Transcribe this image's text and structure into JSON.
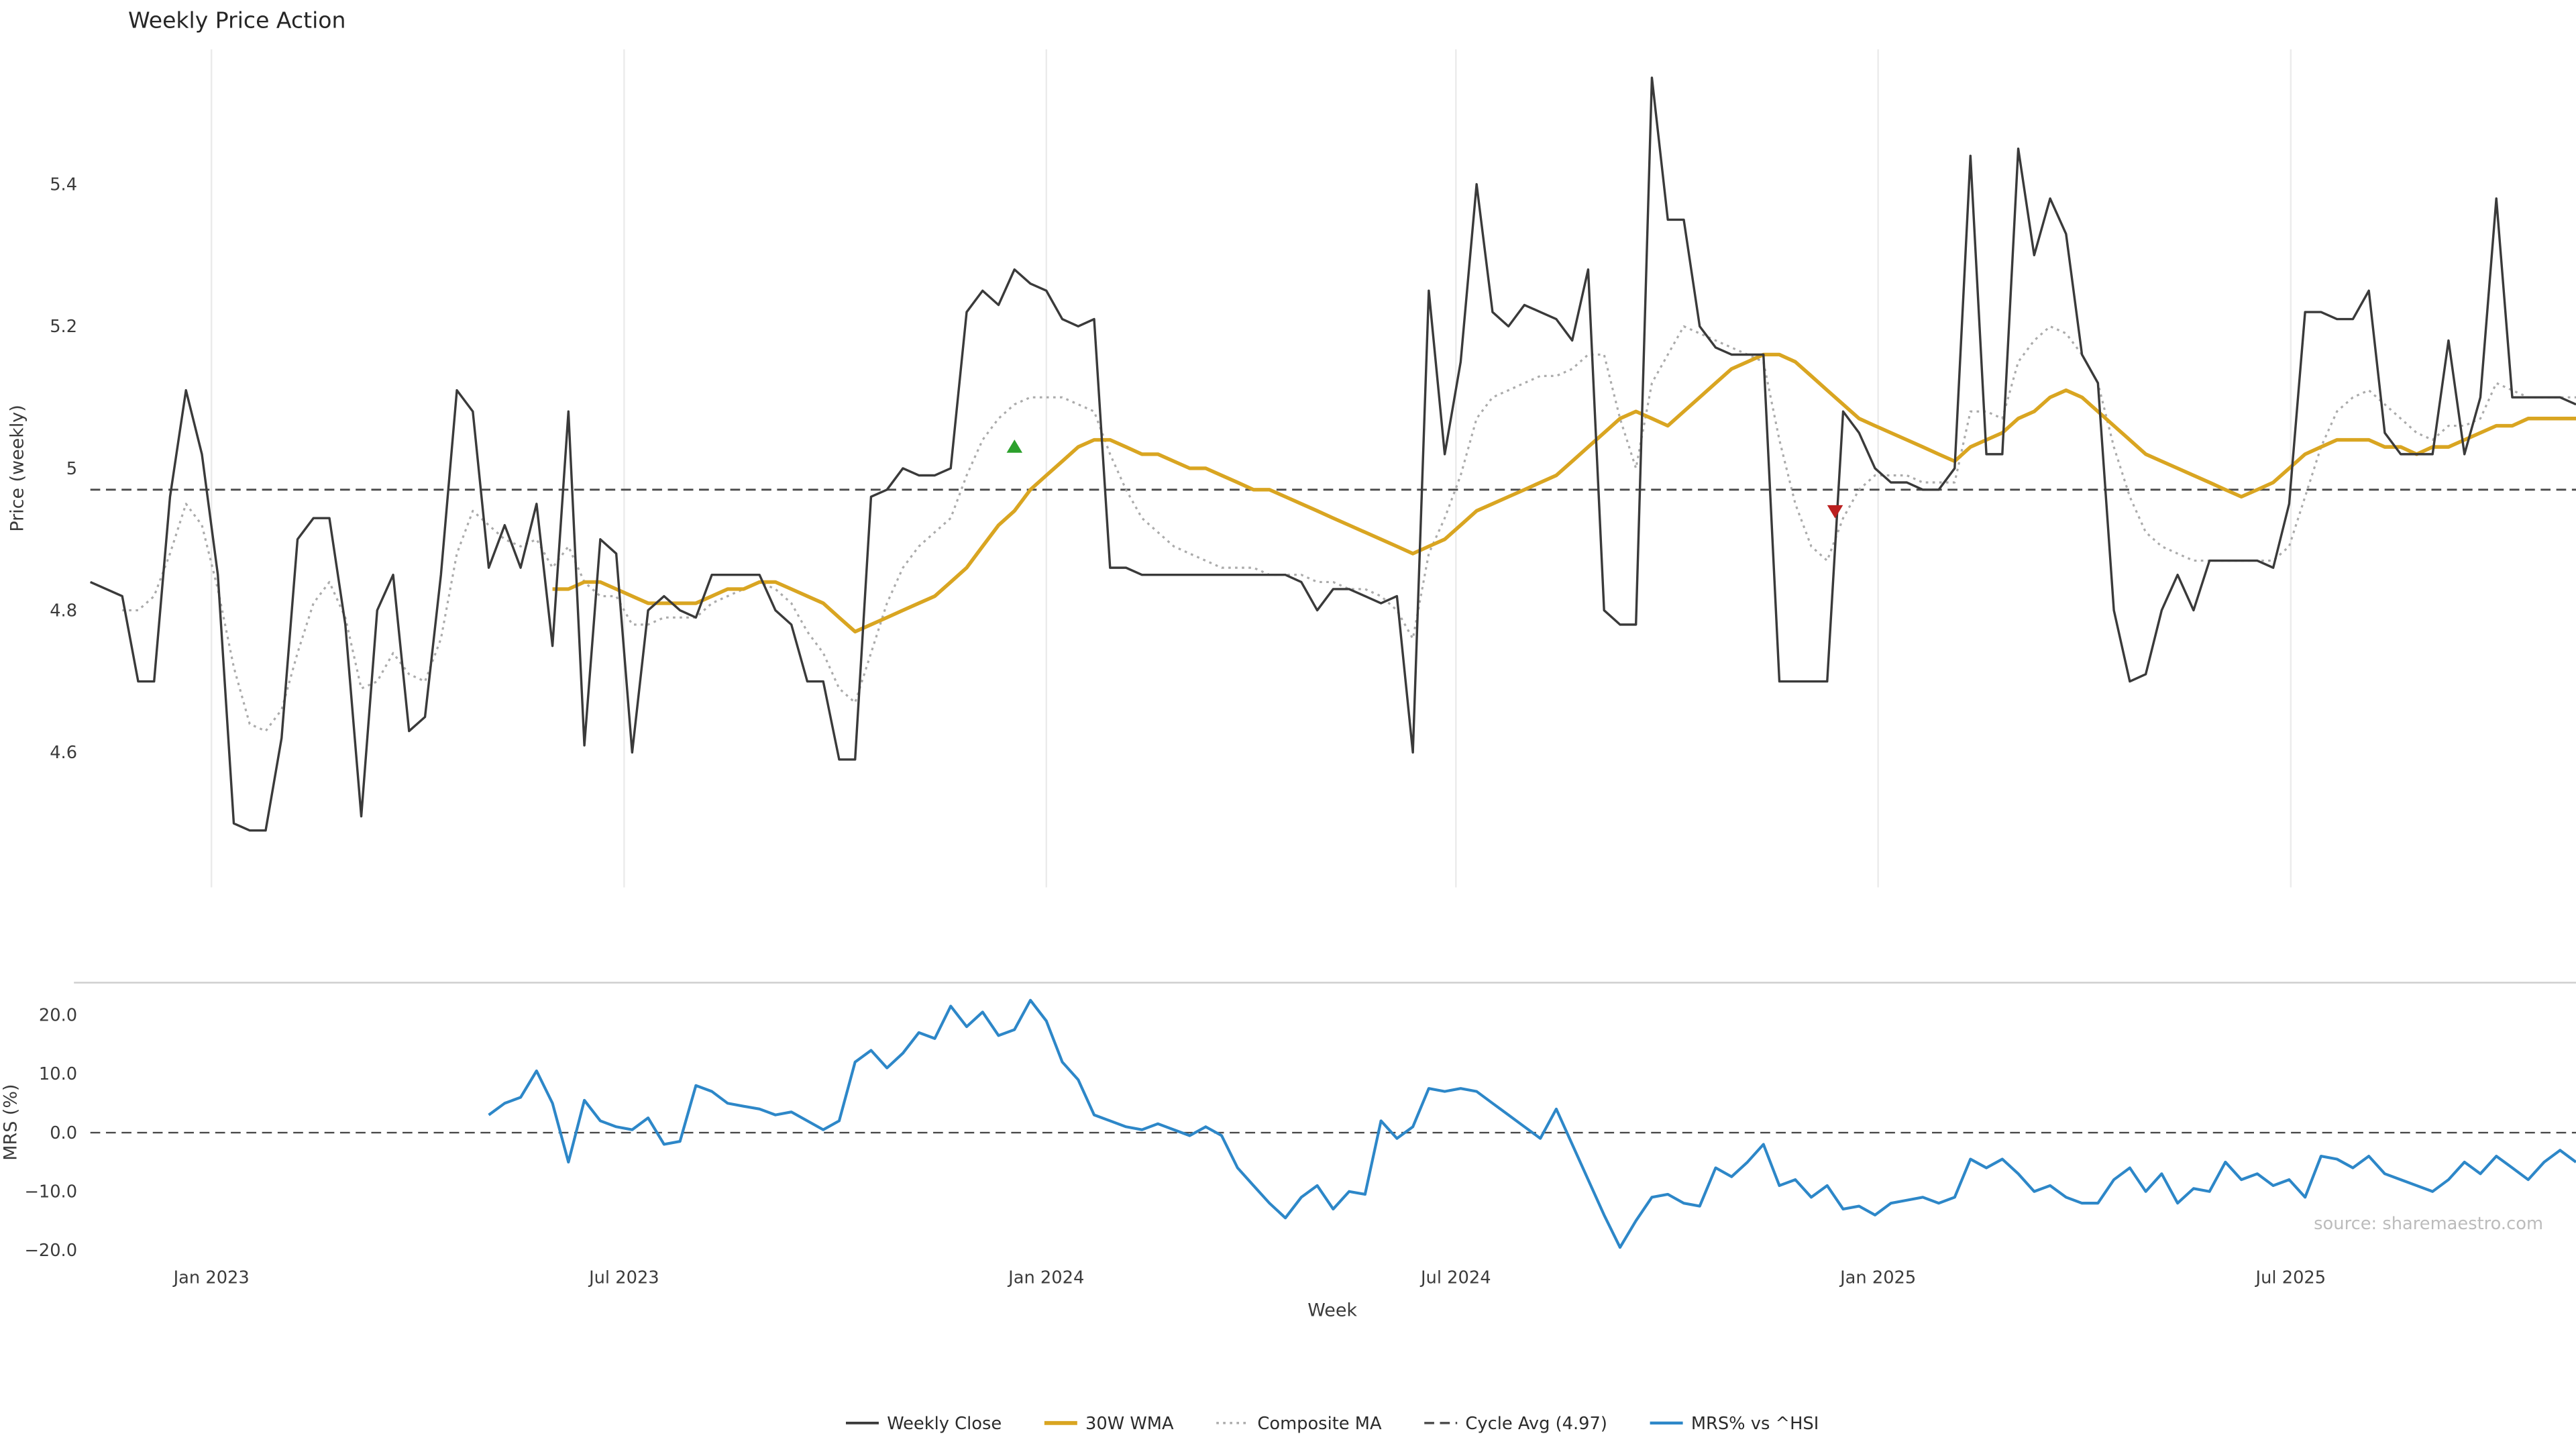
{
  "title": "Weekly Price Action",
  "source_note": "source: sharemaestro.com",
  "axes": {
    "price_ylabel": "Price (weekly)",
    "mrs_ylabel": "MRS (%)",
    "xlabel": "Week",
    "price_ytick_labels": [
      "4.6",
      "4.8",
      "5",
      "5.2",
      "5.4"
    ],
    "price_ytick_values": [
      4.6,
      4.8,
      5.0,
      5.2,
      5.4
    ],
    "mrs_ytick_labels": [
      "−20.0",
      "−10.0",
      "0.0",
      "10.0",
      "20.0"
    ],
    "mrs_ytick_values": [
      -20,
      -10,
      0,
      10,
      20
    ],
    "xtick_labels": [
      "Jan 2023",
      "Jul 2023",
      "Jan 2024",
      "Jul 2024",
      "Jan 2025",
      "Jul 2025"
    ],
    "xtick_indices": [
      7.6,
      33.5,
      60.0,
      85.7,
      112.2,
      138.1
    ]
  },
  "colors": {
    "weekly_close": "#3a3a3a",
    "wma": "#d9a521",
    "composite": "#ababab",
    "cycle_avg": "#4a4a4a",
    "mrs": "#2d87c8",
    "buy_marker": "#2ca02c",
    "sell_marker": "#bb2020",
    "gridline": "#ebebeb",
    "panel_spine": "#cfcfcf"
  },
  "legend": [
    {
      "label": "Weekly Close",
      "color": "#3a3a3a",
      "style": "solid",
      "width": 1.6
    },
    {
      "label": "30W WMA",
      "color": "#d9a521",
      "style": "solid",
      "width": 2.4
    },
    {
      "label": "Composite MA",
      "color": "#ababab",
      "style": "dotted",
      "width": 1.4
    },
    {
      "label": "Cycle Avg (4.97)",
      "color": "#4a4a4a",
      "style": "dashed",
      "width": 1.4
    },
    {
      "label": "MRS% vs ^HSI",
      "color": "#2d87c8",
      "style": "solid",
      "width": 1.8
    }
  ],
  "chart_data": [
    {
      "type": "line",
      "panel": "price",
      "title": "Weekly Price Action",
      "xlabel": "Week",
      "ylabel": "Price (weekly)",
      "ylim": [
        4.41,
        5.59
      ],
      "x_description": "weekly index 0..156 (≈ mid-Nov 2022 to Nov 2025)",
      "xticks": [
        {
          "label": "Jan 2023",
          "index": 7.6
        },
        {
          "label": "Jul 2023",
          "index": 33.5
        },
        {
          "label": "Jan 2024",
          "index": 60.0
        },
        {
          "label": "Jul 2024",
          "index": 85.7
        },
        {
          "label": "Jan 2025",
          "index": 112.2
        },
        {
          "label": "Jul 2025",
          "index": 138.1
        }
      ],
      "grid": "vertical",
      "legend_position": "bottom-center",
      "series": [
        {
          "name": "Weekly Close",
          "color": "#3a3a3a",
          "line": "solid",
          "values": [
            4.84,
            4.83,
            4.82,
            4.7,
            4.7,
            4.96,
            5.11,
            5.02,
            4.85,
            4.5,
            4.49,
            4.49,
            4.62,
            4.9,
            4.93,
            4.93,
            4.78,
            4.51,
            4.8,
            4.85,
            4.63,
            4.65,
            4.85,
            5.11,
            5.08,
            4.86,
            4.92,
            4.86,
            4.95,
            4.75,
            5.08,
            4.61,
            4.9,
            4.88,
            4.6,
            4.8,
            4.82,
            4.8,
            4.79,
            4.85,
            4.85,
            4.85,
            4.85,
            4.8,
            4.78,
            4.7,
            4.7,
            4.59,
            4.59,
            4.96,
            4.97,
            5.0,
            4.99,
            4.99,
            5.0,
            5.22,
            5.25,
            5.23,
            5.28,
            5.26,
            5.25,
            5.21,
            5.2,
            5.21,
            4.86,
            4.86,
            4.85,
            4.85,
            4.85,
            4.85,
            4.85,
            4.85,
            4.85,
            4.85,
            4.85,
            4.85,
            4.84,
            4.8,
            4.83,
            4.83,
            4.82,
            4.81,
            4.82,
            4.6,
            5.25,
            5.02,
            5.15,
            5.4,
            5.22,
            5.2,
            5.23,
            5.22,
            5.21,
            5.18,
            5.28,
            4.8,
            4.78,
            4.78,
            5.55,
            5.35,
            5.35,
            5.2,
            5.17,
            5.16,
            5.16,
            5.16,
            4.7,
            4.7,
            4.7,
            4.7,
            5.08,
            5.05,
            5.0,
            4.98,
            4.98,
            4.97,
            4.97,
            5.0,
            5.44,
            5.02,
            5.02,
            5.45,
            5.3,
            5.38,
            5.33,
            5.16,
            5.12,
            4.8,
            4.7,
            4.71,
            4.8,
            4.85,
            4.8,
            4.87,
            4.87,
            4.87,
            4.87,
            4.86,
            4.95,
            5.22,
            5.22,
            5.21,
            5.21,
            5.25,
            5.05,
            5.02,
            5.02,
            5.02,
            5.18,
            5.02,
            5.1,
            5.38,
            5.1,
            5.1,
            5.1,
            5.1,
            5.09
          ]
        },
        {
          "name": "30W WMA",
          "color": "#d9a521",
          "line": "solid",
          "values": [
            null,
            null,
            null,
            null,
            null,
            null,
            null,
            null,
            null,
            null,
            null,
            null,
            null,
            null,
            null,
            null,
            null,
            null,
            null,
            null,
            null,
            null,
            null,
            null,
            null,
            null,
            null,
            null,
            null,
            4.83,
            4.83,
            4.84,
            4.84,
            4.83,
            4.82,
            4.81,
            4.81,
            4.81,
            4.81,
            4.82,
            4.83,
            4.83,
            4.84,
            4.84,
            4.83,
            4.82,
            4.81,
            4.79,
            4.77,
            4.78,
            4.79,
            4.8,
            4.81,
            4.82,
            4.84,
            4.86,
            4.89,
            4.92,
            4.94,
            4.97,
            4.99,
            5.01,
            5.03,
            5.04,
            5.04,
            5.03,
            5.02,
            5.02,
            5.01,
            5.0,
            5.0,
            4.99,
            4.98,
            4.97,
            4.97,
            4.96,
            4.95,
            4.94,
            4.93,
            4.92,
            4.91,
            4.9,
            4.89,
            4.88,
            4.89,
            4.9,
            4.92,
            4.94,
            4.95,
            4.96,
            4.97,
            4.98,
            4.99,
            5.01,
            5.03,
            5.05,
            5.07,
            5.08,
            5.07,
            5.06,
            5.08,
            5.1,
            5.12,
            5.14,
            5.15,
            5.16,
            5.16,
            5.15,
            5.13,
            5.11,
            5.09,
            5.07,
            5.06,
            5.05,
            5.04,
            5.03,
            5.02,
            5.01,
            5.03,
            5.04,
            5.05,
            5.07,
            5.08,
            5.1,
            5.11,
            5.1,
            5.08,
            5.06,
            5.04,
            5.02,
            5.01,
            5.0,
            4.99,
            4.98,
            4.97,
            4.96,
            4.97,
            4.98,
            5.0,
            5.02,
            5.03,
            5.04,
            5.04,
            5.04,
            5.03,
            5.03,
            5.02,
            5.03,
            5.03,
            5.04,
            5.05,
            5.06,
            5.06,
            5.07,
            5.07,
            5.07,
            5.07
          ]
        },
        {
          "name": "Composite MA",
          "color": "#ababab",
          "line": "dotted",
          "values": [
            null,
            null,
            4.8,
            4.8,
            4.82,
            4.88,
            4.95,
            4.92,
            4.83,
            4.72,
            4.64,
            4.63,
            4.66,
            4.74,
            4.81,
            4.84,
            4.79,
            4.69,
            4.7,
            4.74,
            4.71,
            4.7,
            4.76,
            4.88,
            4.94,
            4.92,
            4.9,
            4.89,
            4.9,
            4.86,
            4.89,
            4.84,
            4.82,
            4.82,
            4.78,
            4.78,
            4.79,
            4.79,
            4.79,
            4.81,
            4.82,
            4.83,
            4.84,
            4.83,
            4.81,
            4.77,
            4.74,
            4.69,
            4.67,
            4.74,
            4.81,
            4.86,
            4.89,
            4.91,
            4.93,
            4.99,
            5.04,
            5.07,
            5.09,
            5.1,
            5.1,
            5.1,
            5.09,
            5.08,
            5.02,
            4.97,
            4.93,
            4.91,
            4.89,
            4.88,
            4.87,
            4.86,
            4.86,
            4.86,
            4.85,
            4.85,
            4.85,
            4.84,
            4.84,
            4.83,
            4.83,
            4.82,
            4.8,
            4.76,
            4.88,
            4.93,
            4.99,
            5.07,
            5.1,
            5.11,
            5.12,
            5.13,
            5.13,
            5.14,
            5.16,
            5.16,
            5.07,
            5.0,
            5.12,
            5.16,
            5.2,
            5.19,
            5.18,
            5.17,
            5.16,
            5.15,
            5.04,
            4.95,
            4.89,
            4.87,
            4.93,
            4.97,
            4.99,
            4.99,
            4.99,
            4.98,
            4.98,
            4.98,
            5.08,
            5.08,
            5.07,
            5.15,
            5.18,
            5.2,
            5.19,
            5.16,
            5.12,
            5.03,
            4.96,
            4.91,
            4.89,
            4.88,
            4.87,
            4.87,
            4.87,
            4.87,
            4.87,
            4.87,
            4.89,
            4.96,
            5.03,
            5.08,
            5.1,
            5.11,
            5.09,
            5.07,
            5.05,
            5.04,
            5.06,
            5.06,
            5.07,
            5.12,
            5.11,
            5.1,
            5.1,
            5.1,
            5.1
          ]
        }
      ],
      "reference_lines": [
        {
          "name": "Cycle Avg (4.97)",
          "value": 4.97,
          "color": "#4a4a4a",
          "line": "dashed"
        }
      ],
      "markers": [
        {
          "shape": "triangle-up",
          "color": "#2ca02c",
          "index": 58,
          "value": 5.03
        },
        {
          "shape": "triangle-down",
          "color": "#bb2020",
          "index": 109.5,
          "value": 4.94
        }
      ]
    },
    {
      "type": "line",
      "panel": "mrs",
      "ylabel": "MRS (%)",
      "ylim": [
        -22,
        25.5
      ],
      "yticks": [
        -20,
        -10,
        0,
        10,
        20
      ],
      "series": [
        {
          "name": "MRS% vs ^HSI",
          "color": "#2d87c8",
          "line": "solid",
          "values": [
            null,
            null,
            null,
            null,
            null,
            null,
            null,
            null,
            null,
            null,
            null,
            null,
            null,
            null,
            null,
            null,
            null,
            null,
            null,
            null,
            null,
            null,
            null,
            null,
            null,
            3,
            5,
            6,
            10.5,
            5,
            -5,
            5.5,
            2,
            1,
            0.5,
            2.5,
            -2,
            -1.5,
            8,
            7,
            5,
            4.5,
            4,
            3,
            3.5,
            2,
            0.5,
            2,
            12,
            14,
            11,
            13.5,
            17,
            16,
            21.5,
            18,
            20.5,
            16.5,
            17.5,
            22.5,
            19,
            12,
            9,
            3,
            2,
            1,
            0.5,
            1.5,
            0.5,
            -0.5,
            1,
            -0.5,
            -6,
            -9,
            -12,
            -14.5,
            -11,
            -9,
            -13,
            -10,
            -10.5,
            2,
            -1,
            1,
            7.5,
            7,
            7.5,
            7,
            5,
            3,
            1,
            -1,
            4,
            -2,
            -8,
            -14,
            -19.5,
            -15,
            -11,
            -10.5,
            -12,
            -12.5,
            -6,
            -7.5,
            -5,
            -2,
            -9,
            -8,
            -11,
            -9,
            -13,
            -12.5,
            -14,
            -12,
            -11.5,
            -11,
            -12,
            -11,
            -4.5,
            -6,
            -4.5,
            -7,
            -10,
            -9,
            -11,
            -12,
            -12,
            -8,
            -6,
            -10,
            -7,
            -12,
            -9.5,
            -10,
            -5,
            -8,
            -7,
            -9,
            -8,
            -11,
            -4,
            -4.5,
            -6,
            -4,
            -7,
            -8,
            -9,
            -10,
            -8,
            -5,
            -7,
            -4,
            -6,
            -8,
            -5,
            -3,
            -5
          ]
        }
      ],
      "reference_lines": [
        {
          "name": "zero",
          "value": 0,
          "color": "#4a4a4a",
          "line": "dashed"
        }
      ]
    }
  ]
}
